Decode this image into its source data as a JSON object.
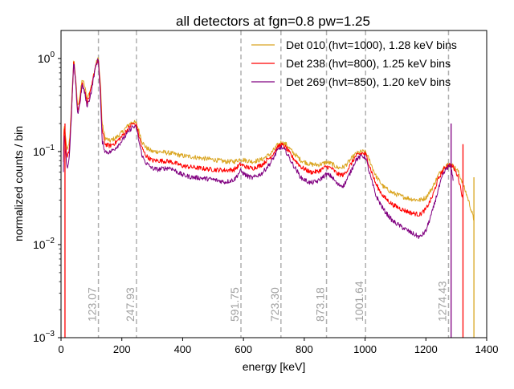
{
  "chart_data": {
    "type": "line",
    "title": "all detectors at fgn=0.8 pw=1.25",
    "xlabel": "energy [keV]",
    "ylabel": "normalized counts / bin",
    "xlim": [
      0,
      1400
    ],
    "ylim": [
      0.001,
      2.0
    ],
    "yscale": "log",
    "xticks": [
      0,
      200,
      400,
      600,
      800,
      1000,
      1200,
      1400
    ],
    "xtick_labels": [
      "0",
      "200",
      "400",
      "600",
      "800",
      "1000",
      "1200",
      "1400"
    ],
    "yticks": [
      0.001,
      0.01,
      0.1,
      1
    ],
    "ytick_labels": [
      {
        "base": "10",
        "exp": "−3"
      },
      {
        "base": "10",
        "exp": "−2"
      },
      {
        "base": "10",
        "exp": "−1"
      },
      {
        "base": "10",
        "exp": "0"
      }
    ],
    "legend_position": "top-right",
    "reference_lines": [
      {
        "energy": 123.07,
        "label": "123.07"
      },
      {
        "energy": 247.93,
        "label": "247.93"
      },
      {
        "energy": 591.75,
        "label": "591.75"
      },
      {
        "energy": 723.3,
        "label": "723.30"
      },
      {
        "energy": 873.18,
        "label": "873.18"
      },
      {
        "energy": 1001.64,
        "label": "1001.64"
      },
      {
        "energy": 1274.43,
        "label": "1274.43"
      }
    ],
    "series": [
      {
        "name": "Det 010 (hvt=1000), 1.28 keV bins",
        "color": "#DAA520",
        "x": [
          8,
          10,
          14,
          20,
          28,
          35,
          42,
          48,
          55,
          62,
          70,
          78,
          85,
          92,
          100,
          108,
          115,
          123,
          130,
          135,
          145,
          160,
          180,
          200,
          220,
          235,
          248,
          258,
          268,
          280,
          300,
          320,
          340,
          360,
          380,
          400,
          430,
          460,
          500,
          540,
          570,
          590,
          610,
          630,
          660,
          690,
          710,
          723,
          740,
          760,
          790,
          820,
          845,
          860,
          873,
          890,
          910,
          930,
          950,
          970,
          990,
          1002,
          1015,
          1035,
          1060,
          1090,
          1120,
          1150,
          1180,
          1200,
          1220,
          1240,
          1255,
          1268,
          1278,
          1290,
          1305,
          1320,
          1340,
          1355,
          1358
        ],
        "y": [
          0.1,
          0.2,
          0.15,
          0.1,
          0.13,
          0.35,
          1.0,
          0.6,
          0.3,
          0.4,
          0.6,
          0.5,
          0.38,
          0.42,
          0.5,
          0.7,
          0.9,
          1.0,
          0.5,
          0.2,
          0.14,
          0.13,
          0.14,
          0.16,
          0.19,
          0.21,
          0.2,
          0.16,
          0.125,
          0.11,
          0.1,
          0.1,
          0.098,
          0.096,
          0.093,
          0.09,
          0.088,
          0.085,
          0.082,
          0.078,
          0.078,
          0.083,
          0.08,
          0.078,
          0.082,
          0.095,
          0.115,
          0.125,
          0.12,
          0.1,
          0.08,
          0.073,
          0.072,
          0.074,
          0.077,
          0.074,
          0.067,
          0.068,
          0.08,
          0.095,
          0.1,
          0.098,
          0.08,
          0.055,
          0.042,
          0.036,
          0.033,
          0.031,
          0.03,
          0.032,
          0.04,
          0.055,
          0.066,
          0.072,
          0.072,
          0.07,
          0.062,
          0.047,
          0.03,
          0.02,
          0.0178
        ]
      },
      {
        "name": "Det 238 (hvt=800), 1.25 keV bins",
        "color": "#FF0000",
        "x": [
          8,
          10,
          14,
          20,
          28,
          35,
          42,
          48,
          55,
          62,
          70,
          78,
          85,
          92,
          100,
          108,
          115,
          123,
          130,
          135,
          145,
          160,
          180,
          200,
          220,
          235,
          248,
          258,
          268,
          280,
          300,
          320,
          340,
          360,
          380,
          400,
          430,
          460,
          500,
          540,
          570,
          590,
          610,
          630,
          660,
          690,
          710,
          723,
          740,
          760,
          790,
          820,
          845,
          860,
          873,
          890,
          910,
          930,
          950,
          970,
          990,
          1002,
          1015,
          1035,
          1060,
          1090,
          1120,
          1150,
          1180,
          1200,
          1220,
          1240,
          1255,
          1268,
          1278,
          1290,
          1305,
          1315,
          1322
        ],
        "y": [
          0.08,
          0.19,
          0.13,
          0.085,
          0.11,
          0.3,
          0.95,
          0.55,
          0.28,
          0.36,
          0.55,
          0.45,
          0.34,
          0.38,
          0.48,
          0.68,
          0.88,
          0.95,
          0.42,
          0.17,
          0.12,
          0.115,
          0.125,
          0.145,
          0.175,
          0.2,
          0.19,
          0.14,
          0.105,
          0.09,
          0.08,
          0.08,
          0.079,
          0.078,
          0.074,
          0.07,
          0.068,
          0.066,
          0.064,
          0.063,
          0.064,
          0.073,
          0.068,
          0.066,
          0.072,
          0.088,
          0.108,
          0.12,
          0.11,
          0.088,
          0.068,
          0.06,
          0.061,
          0.065,
          0.069,
          0.066,
          0.057,
          0.056,
          0.07,
          0.09,
          0.096,
          0.093,
          0.07,
          0.045,
          0.033,
          0.027,
          0.024,
          0.022,
          0.021,
          0.024,
          0.032,
          0.05,
          0.062,
          0.07,
          0.072,
          0.068,
          0.055,
          0.04,
          0.03
        ]
      },
      {
        "name": "Det 269 (hvt=850), 1.20 keV bins",
        "color": "#800080",
        "x": [
          8,
          10,
          14,
          20,
          28,
          35,
          42,
          48,
          55,
          62,
          70,
          78,
          85,
          92,
          100,
          108,
          115,
          123,
          130,
          135,
          145,
          160,
          180,
          200,
          220,
          235,
          248,
          258,
          268,
          280,
          300,
          320,
          340,
          360,
          380,
          400,
          430,
          460,
          500,
          540,
          570,
          590,
          610,
          630,
          660,
          690,
          710,
          723,
          740,
          760,
          790,
          820,
          845,
          860,
          873,
          890,
          910,
          930,
          950,
          970,
          990,
          1002,
          1015,
          1035,
          1060,
          1090,
          1120,
          1150,
          1180,
          1200,
          1220,
          1240,
          1255,
          1268,
          1278,
          1285,
          1290
        ],
        "y": [
          0.06,
          0.17,
          0.11,
          0.065,
          0.09,
          0.28,
          0.92,
          0.52,
          0.25,
          0.33,
          0.52,
          0.42,
          0.31,
          0.35,
          0.45,
          0.65,
          0.85,
          1.0,
          0.35,
          0.13,
          0.1,
          0.098,
          0.11,
          0.13,
          0.16,
          0.185,
          0.18,
          0.12,
          0.088,
          0.075,
          0.066,
          0.064,
          0.066,
          0.067,
          0.061,
          0.056,
          0.053,
          0.052,
          0.05,
          0.047,
          0.05,
          0.062,
          0.055,
          0.052,
          0.058,
          0.076,
          0.1,
          0.112,
          0.1,
          0.075,
          0.052,
          0.046,
          0.048,
          0.053,
          0.057,
          0.054,
          0.044,
          0.043,
          0.058,
          0.082,
          0.09,
          0.086,
          0.058,
          0.034,
          0.024,
          0.018,
          0.0155,
          0.0135,
          0.012,
          0.014,
          0.022,
          0.038,
          0.055,
          0.066,
          0.07,
          0.06,
          0.05
        ]
      }
    ],
    "spikes": [
      {
        "series": 0,
        "x": 1358,
        "y_top": 0.053,
        "y_bottom": 0.001
      },
      {
        "series": 1,
        "x": 13,
        "y_top": 0.2,
        "y_bottom": 0.001
      },
      {
        "series": 1,
        "x": 1322,
        "y_top": 0.12,
        "y_bottom": 0.001
      },
      {
        "series": 2,
        "x": 1283,
        "y_top": 0.2,
        "y_bottom": 0.001
      }
    ]
  }
}
